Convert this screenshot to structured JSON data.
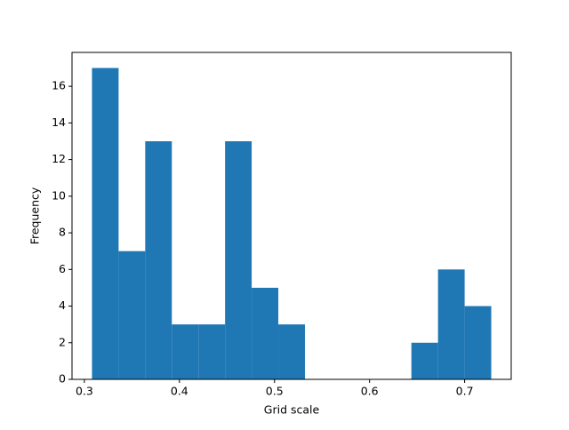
{
  "chart_data": {
    "type": "histogram",
    "x_label": "Grid scale",
    "y_label": "Frequency",
    "bins": [
      0.308,
      0.336,
      0.364,
      0.392,
      0.42,
      0.448,
      0.476,
      0.504,
      0.532,
      0.56,
      0.588,
      0.616,
      0.644,
      0.672,
      0.7,
      0.728
    ],
    "values": [
      17,
      7,
      13,
      3,
      3,
      13,
      5,
      3,
      0,
      0,
      0,
      0,
      2,
      6,
      4
    ],
    "color": "#1f77b4",
    "xlim": [
      0.287,
      0.749
    ],
    "xticks": [
      0.3,
      0.4,
      0.5,
      0.6,
      0.7
    ],
    "ylim": [
      0,
      17.85
    ],
    "yticks": [
      0,
      2,
      4,
      6,
      8,
      10,
      12,
      14,
      16
    ]
  }
}
